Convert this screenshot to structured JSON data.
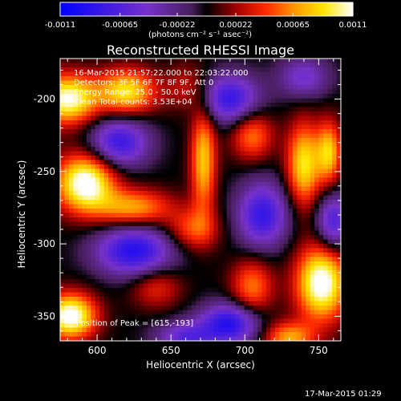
{
  "chart_data": {
    "type": "heatmap",
    "title": "Reconstructed RHESSI Image",
    "xlabel": "Heliocentric X (arcsec)",
    "ylabel": "Heliocentric Y (arcsec)",
    "xlim": [
      575,
      765
    ],
    "ylim": [
      -367,
      -172
    ],
    "x_ticks": [
      600,
      650,
      700,
      750
    ],
    "y_ticks": [
      -200,
      -250,
      -300,
      -350
    ],
    "colorbar": {
      "ticks": [
        "-0.0011",
        "-0.00065",
        "-0.00022",
        "0.00022",
        "0.00065",
        "0.0011"
      ],
      "range": [
        -0.0011,
        0.0011
      ],
      "unit": "(photons cm⁻² s⁻¹ asec⁻²)"
    },
    "annotations": [
      "16-Mar-2015 21:57:22.000 to 22:03:22.000",
      "Detectors: 3F 5F 6F 7F 8F 9F, Att 0",
      "Energy Range: 25.0 - 50.0 keV",
      "Clean     Total counts: 3.53E+04"
    ],
    "peak_label": "Position of Peak = [615,-193]",
    "peak": [
      615,
      -193
    ],
    "sources": [
      {
        "x": 580,
        "y": -200,
        "amp": 0.0011,
        "sx": 14,
        "sy": 12
      },
      {
        "x": 620,
        "y": -195,
        "amp": 0.0009,
        "sx": 14,
        "sy": 11
      },
      {
        "x": 592,
        "y": -258,
        "amp": 0.0012,
        "sx": 14,
        "sy": 14
      },
      {
        "x": 625,
        "y": -275,
        "amp": 0.0007,
        "sx": 18,
        "sy": 9
      },
      {
        "x": 582,
        "y": -350,
        "amp": 0.0012,
        "sx": 12,
        "sy": 11
      },
      {
        "x": 672,
        "y": -242,
        "amp": 0.0008,
        "sx": 6,
        "sy": 26
      },
      {
        "x": 665,
        "y": -290,
        "amp": 0.0005,
        "sx": 12,
        "sy": 10
      },
      {
        "x": 660,
        "y": -192,
        "amp": 0.0003,
        "sx": 9,
        "sy": 12
      },
      {
        "x": 740,
        "y": -245,
        "amp": 0.0009,
        "sx": 8,
        "sy": 20
      },
      {
        "x": 757,
        "y": -237,
        "amp": 0.0008,
        "sx": 6,
        "sy": 15
      },
      {
        "x": 705,
        "y": -225,
        "amp": 0.0006,
        "sx": 10,
        "sy": 12
      },
      {
        "x": 752,
        "y": -327,
        "amp": 0.0012,
        "sx": 12,
        "sy": 18
      },
      {
        "x": 705,
        "y": -330,
        "amp": 0.0006,
        "sx": 10,
        "sy": 14
      },
      {
        "x": 730,
        "y": -365,
        "amp": 0.0007,
        "sx": 12,
        "sy": 8
      },
      {
        "x": 640,
        "y": -330,
        "amp": 0.0004,
        "sx": 12,
        "sy": 10
      },
      {
        "x": 615,
        "y": -230,
        "amp": -0.0008,
        "sx": 14,
        "sy": 12
      },
      {
        "x": 625,
        "y": -305,
        "amp": -0.0009,
        "sx": 18,
        "sy": 12
      },
      {
        "x": 690,
        "y": -200,
        "amp": -0.0008,
        "sx": 14,
        "sy": 12
      },
      {
        "x": 712,
        "y": -280,
        "amp": -0.0008,
        "sx": 12,
        "sy": 16
      },
      {
        "x": 690,
        "y": -355,
        "amp": -0.0009,
        "sx": 14,
        "sy": 10
      },
      {
        "x": 760,
        "y": -285,
        "amp": -0.0007,
        "sx": 8,
        "sy": 14
      },
      {
        "x": 660,
        "y": -365,
        "amp": -0.0006,
        "sx": 14,
        "sy": 8
      },
      {
        "x": 740,
        "y": -185,
        "amp": -0.0005,
        "sx": 12,
        "sy": 10
      }
    ]
  },
  "footer_timestamp": "17-Mar-2015 01:29"
}
